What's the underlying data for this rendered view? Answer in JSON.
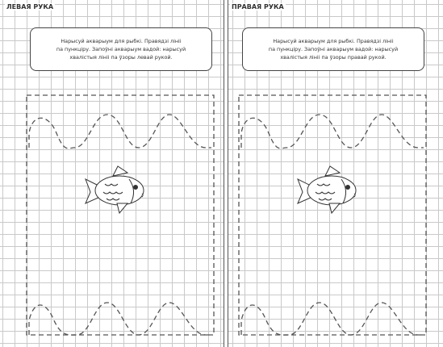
{
  "left": {
    "heading": "ЛЕВАЯ РУКА",
    "instruction": [
      "Нарысуй акварыум для рыбкі. Правядзі лініі",
      "па пункціру. Запоўні акварыум вадой: нарысуй",
      "хвалістыя лініі па ўзоры левай рукой."
    ]
  },
  "right": {
    "heading": "ПРАВАЯ РУКА",
    "instruction": [
      "Нарысуй акварыум для рыбкі. Правядзі лініі",
      "па пункціру. Запоўні акварыум вадой: нарысуй",
      "хвалістыя лініі па ўзоры правай рукой."
    ]
  }
}
